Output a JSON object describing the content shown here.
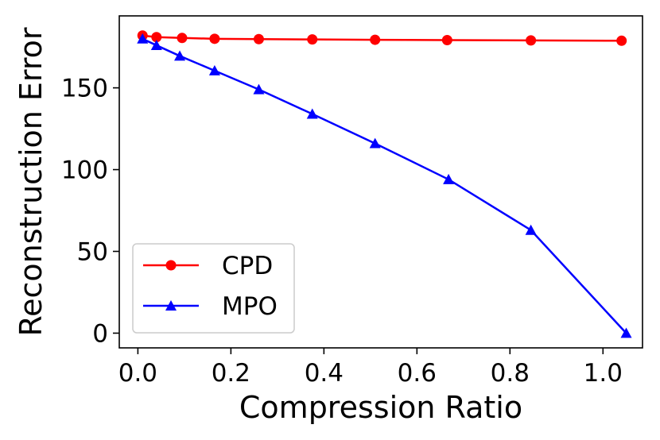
{
  "chart_data": {
    "type": "line",
    "title": "",
    "xlabel": "Compression Ratio",
    "ylabel": "Reconstruction Error",
    "xlim": [
      -0.04,
      1.085
    ],
    "ylim": [
      -9,
      194
    ],
    "xticks": [
      0.0,
      0.2,
      0.4,
      0.6,
      0.8,
      1.0
    ],
    "xtick_labels": [
      "0.0",
      "0.2",
      "0.4",
      "0.6",
      "0.8",
      "1.0"
    ],
    "yticks": [
      0,
      50,
      100,
      150
    ],
    "ytick_labels": [
      "0",
      "50",
      "100",
      "150"
    ],
    "grid": false,
    "legend_position": "lower-left",
    "series": [
      {
        "name": "CPD",
        "color": "#ff0000",
        "marker": "circle",
        "x": [
          0.01,
          0.04,
          0.095,
          0.165,
          0.26,
          0.375,
          0.51,
          0.665,
          0.845,
          1.04
        ],
        "y": [
          182,
          181,
          180.5,
          180,
          179.8,
          179.6,
          179.4,
          179.2,
          179,
          178.8
        ]
      },
      {
        "name": "MPO",
        "color": "#0000ff",
        "marker": "triangle",
        "x": [
          0.01,
          0.04,
          0.09,
          0.165,
          0.26,
          0.375,
          0.51,
          0.668,
          0.845,
          1.05
        ],
        "y": [
          180,
          176,
          169.5,
          160.5,
          149,
          134,
          116,
          94,
          63,
          0
        ]
      }
    ]
  }
}
